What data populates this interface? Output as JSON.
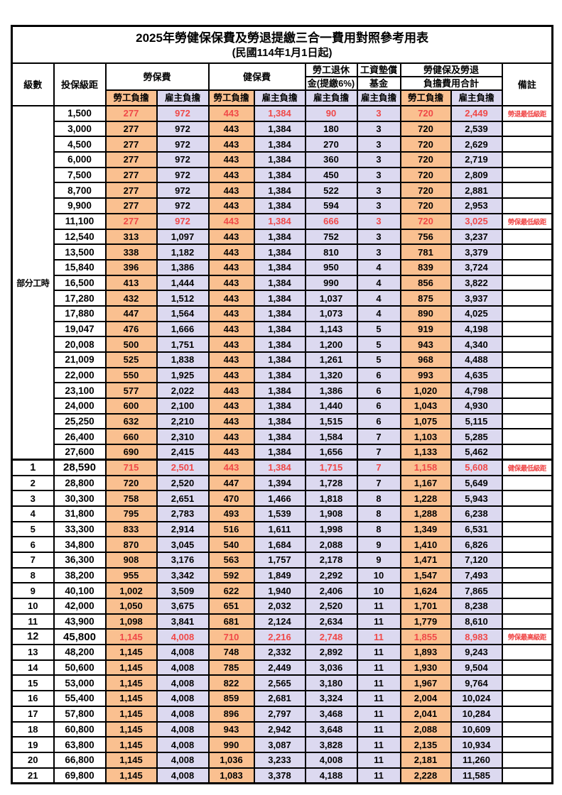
{
  "title": "2025年勞健保保費及勞退提繳三合一費用對照參考用表",
  "subtitle": "(民國114年1月1日起)",
  "colors": {
    "employee_col_bg": "#fac090",
    "employer_col_bg": "#dcd9f0",
    "highlight_text": "#f04848",
    "border": "#000000"
  },
  "header": {
    "level": "級數",
    "bracket": "投保級距",
    "labor_insurance": "勞保費",
    "health_insurance": "健保費",
    "pension_line1": "勞工退休",
    "pension_line2": "金(提繳6%)",
    "wage_fund_line1": "工資墊償",
    "wage_fund_line2": "基金",
    "total_line1": "勞健保及勞退",
    "total_line2": "負擔費用合計",
    "note": "備註",
    "employee_burden": "勞工負擔",
    "employer_burden": "雇主負擔"
  },
  "part_time": {
    "label": "部分工時",
    "rowspan": 23
  },
  "column_keys": [
    "labor_employee",
    "labor_employer",
    "health_employee",
    "health_employer",
    "pension_employer",
    "wagefund_employer",
    "total_employee",
    "total_employer"
  ],
  "rows": [
    {
      "level": "",
      "bracket": "1,500",
      "values": [
        "277",
        "972",
        "443",
        "1,384",
        "90",
        "3",
        "720",
        "2,449"
      ],
      "note": "勞退最低級距",
      "highlight": true,
      "bold": false
    },
    {
      "level": "",
      "bracket": "3,000",
      "values": [
        "277",
        "972",
        "443",
        "1,384",
        "180",
        "3",
        "720",
        "2,539"
      ],
      "note": "",
      "highlight": false,
      "bold": false
    },
    {
      "level": "",
      "bracket": "4,500",
      "values": [
        "277",
        "972",
        "443",
        "1,384",
        "270",
        "3",
        "720",
        "2,629"
      ],
      "note": "",
      "highlight": false,
      "bold": false
    },
    {
      "level": "",
      "bracket": "6,000",
      "values": [
        "277",
        "972",
        "443",
        "1,384",
        "360",
        "3",
        "720",
        "2,719"
      ],
      "note": "",
      "highlight": false,
      "bold": false
    },
    {
      "level": "",
      "bracket": "7,500",
      "values": [
        "277",
        "972",
        "443",
        "1,384",
        "450",
        "3",
        "720",
        "2,809"
      ],
      "note": "",
      "highlight": false,
      "bold": false
    },
    {
      "level": "",
      "bracket": "8,700",
      "values": [
        "277",
        "972",
        "443",
        "1,384",
        "522",
        "3",
        "720",
        "2,881"
      ],
      "note": "",
      "highlight": false,
      "bold": false
    },
    {
      "level": "",
      "bracket": "9,900",
      "values": [
        "277",
        "972",
        "443",
        "1,384",
        "594",
        "3",
        "720",
        "2,953"
      ],
      "note": "",
      "highlight": false,
      "bold": false
    },
    {
      "level": "",
      "bracket": "11,100",
      "values": [
        "277",
        "972",
        "443",
        "1,384",
        "666",
        "3",
        "720",
        "3,025"
      ],
      "note": "勞保最低級距",
      "highlight": true,
      "bold": false
    },
    {
      "level": "",
      "bracket": "12,540",
      "values": [
        "313",
        "1,097",
        "443",
        "1,384",
        "752",
        "3",
        "756",
        "3,237"
      ],
      "note": "",
      "highlight": false,
      "bold": false
    },
    {
      "level": "",
      "bracket": "13,500",
      "values": [
        "338",
        "1,182",
        "443",
        "1,384",
        "810",
        "3",
        "781",
        "3,379"
      ],
      "note": "",
      "highlight": false,
      "bold": false
    },
    {
      "level": "",
      "bracket": "15,840",
      "values": [
        "396",
        "1,386",
        "443",
        "1,384",
        "950",
        "4",
        "839",
        "3,724"
      ],
      "note": "",
      "highlight": false,
      "bold": false
    },
    {
      "level": "",
      "bracket": "16,500",
      "values": [
        "413",
        "1,444",
        "443",
        "1,384",
        "990",
        "4",
        "856",
        "3,822"
      ],
      "note": "",
      "highlight": false,
      "bold": false
    },
    {
      "level": "",
      "bracket": "17,280",
      "values": [
        "432",
        "1,512",
        "443",
        "1,384",
        "1,037",
        "4",
        "875",
        "3,937"
      ],
      "note": "",
      "highlight": false,
      "bold": false
    },
    {
      "level": "",
      "bracket": "17,880",
      "values": [
        "447",
        "1,564",
        "443",
        "1,384",
        "1,073",
        "4",
        "890",
        "4,025"
      ],
      "note": "",
      "highlight": false,
      "bold": false
    },
    {
      "level": "",
      "bracket": "19,047",
      "values": [
        "476",
        "1,666",
        "443",
        "1,384",
        "1,143",
        "5",
        "919",
        "4,198"
      ],
      "note": "",
      "highlight": false,
      "bold": false
    },
    {
      "level": "",
      "bracket": "20,008",
      "values": [
        "500",
        "1,751",
        "443",
        "1,384",
        "1,200",
        "5",
        "943",
        "4,340"
      ],
      "note": "",
      "highlight": false,
      "bold": false
    },
    {
      "level": "",
      "bracket": "21,009",
      "values": [
        "525",
        "1,838",
        "443",
        "1,384",
        "1,261",
        "5",
        "968",
        "4,488"
      ],
      "note": "",
      "highlight": false,
      "bold": false
    },
    {
      "level": "",
      "bracket": "22,000",
      "values": [
        "550",
        "1,925",
        "443",
        "1,384",
        "1,320",
        "6",
        "993",
        "4,635"
      ],
      "note": "",
      "highlight": false,
      "bold": false
    },
    {
      "level": "",
      "bracket": "23,100",
      "values": [
        "577",
        "2,022",
        "443",
        "1,384",
        "1,386",
        "6",
        "1,020",
        "4,798"
      ],
      "note": "",
      "highlight": false,
      "bold": false
    },
    {
      "level": "",
      "bracket": "24,000",
      "values": [
        "600",
        "2,100",
        "443",
        "1,384",
        "1,440",
        "6",
        "1,043",
        "4,930"
      ],
      "note": "",
      "highlight": false,
      "bold": false
    },
    {
      "level": "",
      "bracket": "25,250",
      "values": [
        "632",
        "2,210",
        "443",
        "1,384",
        "1,515",
        "6",
        "1,075",
        "5,115"
      ],
      "note": "",
      "highlight": false,
      "bold": false
    },
    {
      "level": "",
      "bracket": "26,400",
      "values": [
        "660",
        "2,310",
        "443",
        "1,384",
        "1,584",
        "7",
        "1,103",
        "5,285"
      ],
      "note": "",
      "highlight": false,
      "bold": false
    },
    {
      "level": "",
      "bracket": "27,600",
      "values": [
        "690",
        "2,415",
        "443",
        "1,384",
        "1,656",
        "7",
        "1,133",
        "5,462"
      ],
      "note": "",
      "highlight": false,
      "bold": false
    },
    {
      "level": "1",
      "bracket": "28,590",
      "values": [
        "715",
        "2,501",
        "443",
        "1,384",
        "1,715",
        "7",
        "1,158",
        "5,608"
      ],
      "note": "健保最低級距",
      "highlight": true,
      "bold": true
    },
    {
      "level": "2",
      "bracket": "28,800",
      "values": [
        "720",
        "2,520",
        "447",
        "1,394",
        "1,728",
        "7",
        "1,167",
        "5,649"
      ],
      "note": "",
      "highlight": false,
      "bold": false
    },
    {
      "level": "3",
      "bracket": "30,300",
      "values": [
        "758",
        "2,651",
        "470",
        "1,466",
        "1,818",
        "8",
        "1,228",
        "5,943"
      ],
      "note": "",
      "highlight": false,
      "bold": false
    },
    {
      "level": "4",
      "bracket": "31,800",
      "values": [
        "795",
        "2,783",
        "493",
        "1,539",
        "1,908",
        "8",
        "1,288",
        "6,238"
      ],
      "note": "",
      "highlight": false,
      "bold": false
    },
    {
      "level": "5",
      "bracket": "33,300",
      "values": [
        "833",
        "2,914",
        "516",
        "1,611",
        "1,998",
        "8",
        "1,349",
        "6,531"
      ],
      "note": "",
      "highlight": false,
      "bold": false
    },
    {
      "level": "6",
      "bracket": "34,800",
      "values": [
        "870",
        "3,045",
        "540",
        "1,684",
        "2,088",
        "9",
        "1,410",
        "6,826"
      ],
      "note": "",
      "highlight": false,
      "bold": false
    },
    {
      "level": "7",
      "bracket": "36,300",
      "values": [
        "908",
        "3,176",
        "563",
        "1,757",
        "2,178",
        "9",
        "1,471",
        "7,120"
      ],
      "note": "",
      "highlight": false,
      "bold": false
    },
    {
      "level": "8",
      "bracket": "38,200",
      "values": [
        "955",
        "3,342",
        "592",
        "1,849",
        "2,292",
        "10",
        "1,547",
        "7,493"
      ],
      "note": "",
      "highlight": false,
      "bold": false
    },
    {
      "level": "9",
      "bracket": "40,100",
      "values": [
        "1,002",
        "3,509",
        "622",
        "1,940",
        "2,406",
        "10",
        "1,624",
        "7,865"
      ],
      "note": "",
      "highlight": false,
      "bold": false
    },
    {
      "level": "10",
      "bracket": "42,000",
      "values": [
        "1,050",
        "3,675",
        "651",
        "2,032",
        "2,520",
        "11",
        "1,701",
        "8,238"
      ],
      "note": "",
      "highlight": false,
      "bold": false
    },
    {
      "level": "11",
      "bracket": "43,900",
      "values": [
        "1,098",
        "3,841",
        "681",
        "2,124",
        "2,634",
        "11",
        "1,779",
        "8,610"
      ],
      "note": "",
      "highlight": false,
      "bold": false
    },
    {
      "level": "12",
      "bracket": "45,800",
      "values": [
        "1,145",
        "4,008",
        "710",
        "2,216",
        "2,748",
        "11",
        "1,855",
        "8,983"
      ],
      "note": "勞保最高級距",
      "highlight": true,
      "bold": true
    },
    {
      "level": "13",
      "bracket": "48,200",
      "values": [
        "1,145",
        "4,008",
        "748",
        "2,332",
        "2,892",
        "11",
        "1,893",
        "9,243"
      ],
      "note": "",
      "highlight": false,
      "bold": false
    },
    {
      "level": "14",
      "bracket": "50,600",
      "values": [
        "1,145",
        "4,008",
        "785",
        "2,449",
        "3,036",
        "11",
        "1,930",
        "9,504"
      ],
      "note": "",
      "highlight": false,
      "bold": false
    },
    {
      "level": "15",
      "bracket": "53,000",
      "values": [
        "1,145",
        "4,008",
        "822",
        "2,565",
        "3,180",
        "11",
        "1,967",
        "9,764"
      ],
      "note": "",
      "highlight": false,
      "bold": false
    },
    {
      "level": "16",
      "bracket": "55,400",
      "values": [
        "1,145",
        "4,008",
        "859",
        "2,681",
        "3,324",
        "11",
        "2,004",
        "10,024"
      ],
      "note": "",
      "highlight": false,
      "bold": false
    },
    {
      "level": "17",
      "bracket": "57,800",
      "values": [
        "1,145",
        "4,008",
        "896",
        "2,797",
        "3,468",
        "11",
        "2,041",
        "10,284"
      ],
      "note": "",
      "highlight": false,
      "bold": false
    },
    {
      "level": "18",
      "bracket": "60,800",
      "values": [
        "1,145",
        "4,008",
        "943",
        "2,942",
        "3,648",
        "11",
        "2,088",
        "10,609"
      ],
      "note": "",
      "highlight": false,
      "bold": false
    },
    {
      "level": "19",
      "bracket": "63,800",
      "values": [
        "1,145",
        "4,008",
        "990",
        "3,087",
        "3,828",
        "11",
        "2,135",
        "10,934"
      ],
      "note": "",
      "highlight": false,
      "bold": false
    },
    {
      "level": "20",
      "bracket": "66,800",
      "values": [
        "1,145",
        "4,008",
        "1,036",
        "3,233",
        "4,008",
        "11",
        "2,181",
        "11,260"
      ],
      "note": "",
      "highlight": false,
      "bold": false
    },
    {
      "level": "21",
      "bracket": "69,800",
      "values": [
        "1,145",
        "4,008",
        "1,083",
        "3,378",
        "4,188",
        "11",
        "2,228",
        "11,585"
      ],
      "note": "",
      "highlight": false,
      "bold": false
    }
  ]
}
